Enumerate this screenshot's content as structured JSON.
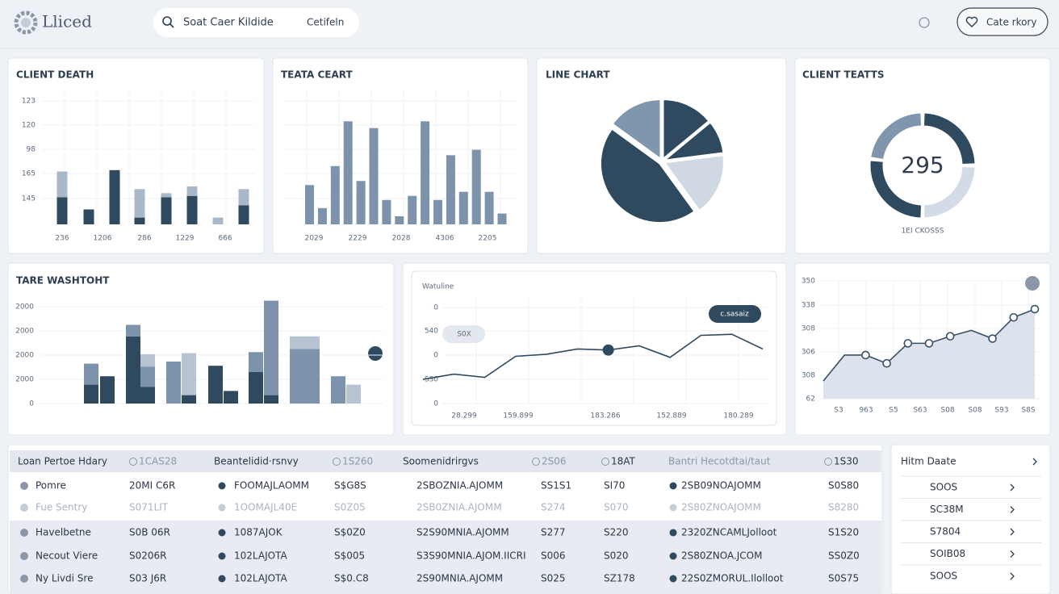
{
  "header": {
    "logo": "Lliced",
    "search_placeholder": "Soat Caer Kildide",
    "search_button": "Cetifeln",
    "action_button": "Cate rkory"
  },
  "chart_data": [
    {
      "type": "stacked-bar",
      "title": "CLIENT DEATH",
      "y_labels": [
        "123",
        "120",
        "98",
        "165",
        "145"
      ],
      "x_labels": [
        "236",
        "1206",
        "286",
        "1229",
        "666"
      ],
      "ylim": [
        0,
        100
      ],
      "series": [
        {
          "color": "#2f4a5f",
          "values": [
            20,
            11,
            40,
            5,
            20,
            21,
            0,
            14
          ]
        },
        {
          "color": "#a9b8c9",
          "values": [
            19,
            0,
            0,
            21,
            3,
            7,
            5,
            12
          ]
        }
      ]
    },
    {
      "type": "bar",
      "title": "TEATA CEART",
      "x_labels": [
        "2029",
        "2229",
        "2028",
        "4306",
        "2205"
      ],
      "ylim": [
        0,
        100
      ],
      "color": "#7d93ab",
      "values": [
        29,
        12,
        43,
        76,
        32,
        71,
        18,
        6,
        21,
        76,
        18,
        51,
        24,
        55,
        24,
        8
      ]
    },
    {
      "type": "pie",
      "title": "LINE CHART",
      "values": [
        14,
        9,
        17,
        45,
        15
      ],
      "colors": [
        "#2f4a5f",
        "#2f4a5f",
        "#cfd8e3",
        "#2f4a5f",
        "#8096ad"
      ]
    },
    {
      "type": "donut",
      "title": "CLIENT TEATTS",
      "center_label": "295",
      "caption": "1EI CKOSSS",
      "values": [
        25,
        25,
        27,
        23
      ],
      "colors": [
        "#2f4a5f",
        "#d3dbe6",
        "#2f4a5f",
        "#8096ad"
      ]
    },
    {
      "type": "stacked-bar",
      "title": "TARE WASHTOHT",
      "y_labels": [
        "2000",
        "2000",
        "2000",
        "2000",
        "0"
      ],
      "ylim": [
        0,
        100
      ],
      "series": [
        {
          "color": "#2f4a5f",
          "values": [
            18,
            26,
            64,
            16,
            0,
            8,
            36,
            12,
            30,
            8,
            0,
            0,
            0
          ]
        },
        {
          "color": "#7d93ab",
          "values": [
            20,
            0,
            11,
            19,
            40,
            0,
            0,
            0,
            19,
            90,
            52,
            26,
            0
          ]
        },
        {
          "color": "#b7c3d1",
          "values": [
            0,
            0,
            0,
            12,
            0,
            40,
            0,
            0,
            0,
            0,
            12,
            0,
            18
          ]
        }
      ]
    },
    {
      "type": "line",
      "subtitle": "Watuline",
      "y_labels": [
        "0",
        "540",
        "0",
        "SS0",
        "0"
      ],
      "x_labels": [
        "28.299",
        "159.899",
        "183.286",
        "152.889",
        "180.289"
      ],
      "ylim": [
        0,
        100
      ],
      "color": "#2f4a5f",
      "values": [
        23,
        28,
        25,
        45,
        47,
        52,
        51,
        55,
        44,
        65,
        66,
        52
      ],
      "annotations": [
        "S0X",
        "c.sasaiz"
      ]
    },
    {
      "type": "area",
      "y_labels": [
        "350",
        "338",
        "308",
        "306",
        "308",
        "62"
      ],
      "x_labels": [
        "S3",
        "963",
        "S5",
        "S63",
        "S08",
        "S08",
        "S93",
        "S8S"
      ],
      "ylim": [
        0,
        100
      ],
      "color": "#3a5068",
      "values": [
        15,
        37,
        37,
        30,
        47,
        47,
        53,
        58,
        51,
        69,
        76
      ]
    }
  ],
  "table": {
    "header": [
      "Loan Pertoe Hdary",
      "1CAS28",
      "Beantelidid·rsnvy",
      "1S260",
      "Soomenidrirgvs",
      "2S06",
      "18AT",
      "Bantri Hecotdtai/taut",
      "1S30"
    ],
    "rows": [
      [
        "Pomre",
        "20MI C6R",
        "FOOMAJLAOMM",
        "S$G8S",
        "2SBOZNIA.AJOMM",
        "SS1S1",
        "SI70",
        "2SB09NOAJOMM",
        "S0S80"
      ],
      [
        "Fue Sentry",
        "S071LIT",
        "1OOMAJL40E",
        "S0Z05",
        "2SB0ZNIA.AJOMM",
        "S274",
        "S070",
        "2S80ZNOAJOMM",
        "S8280"
      ],
      [
        "Havelbetne",
        "S0B 06R",
        "1087AJOK",
        "S$0Z0",
        "S2S90MNIA.AJOMM",
        "S277",
        "S220",
        "2320ZNCAMLJolloot",
        "S1S20"
      ],
      [
        "Necout Viere",
        "S0206R",
        "102LAJOTA",
        "S$005",
        "S3S90MNIA.AJOM.IICRI",
        "S006",
        "S020",
        "2S80ZNOA.JCOM",
        "SS0Z0"
      ],
      [
        "Ny Livdi Sre",
        "S03 J6R",
        "102LAJOTA",
        "S$0.C8",
        "2S90MNIA.AJOMM",
        "S025",
        "SZ178",
        "22S0ZMORUL.Ilolloot",
        "S0S75"
      ]
    ]
  },
  "side_list": {
    "title": "Hitm Daate",
    "items": [
      "SOOS",
      "SC38M",
      "S7804",
      "SOIB08",
      "SOOS"
    ]
  }
}
